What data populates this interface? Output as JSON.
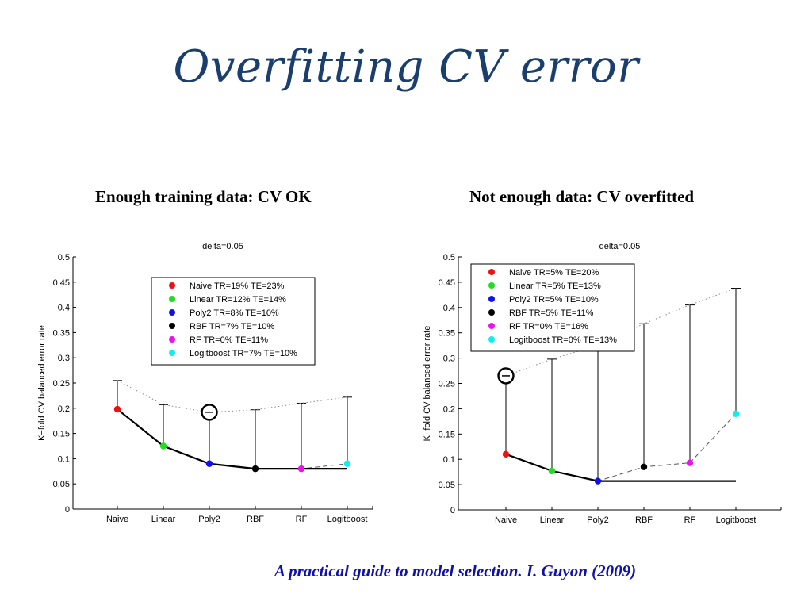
{
  "slide": {
    "title": "Overfitting CV error",
    "citation": "A practical guide to model selection. I. Guyon (2009)"
  },
  "colors": {
    "title": "#1a3f6e",
    "citation": "#1010b0",
    "Naive": "#ee1111",
    "Linear": "#22dd22",
    "Poly2": "#1111ee",
    "RBF": "#000000",
    "RF": "#ee11ee",
    "Logitboost": "#11eeee"
  },
  "chart_data": [
    {
      "type": "line",
      "caption": "Enough training data: CV OK",
      "title": "delta=0.05",
      "ylabel": "K−fold CV balanced error rate",
      "xlabel": "",
      "categories": [
        "Naive",
        "Linear",
        "Poly2",
        "RBF",
        "RF",
        "Logitboost"
      ],
      "ylim": [
        0,
        0.5
      ],
      "yticks": [
        "0",
        "0.05",
        "0.1",
        "0.15",
        "0.2",
        "0.25",
        "0.3",
        "0.35",
        "0.4",
        "0.45",
        "0.5"
      ],
      "grid": false,
      "legend_position": "top-right",
      "series": [
        {
          "name": "Naive TR=19% TE=23%",
          "value": 0.198,
          "upper": 0.255
        },
        {
          "name": "Linear TR=12% TE=14%",
          "value": 0.125,
          "upper": 0.207
        },
        {
          "name": "Poly2 TR=8% TE=10%",
          "value": 0.09,
          "upper": 0.192
        },
        {
          "name": "RBF TR=7% TE=10%",
          "value": 0.08,
          "upper": 0.197
        },
        {
          "name": "RF TR=0% TE=11%",
          "value": 0.08,
          "upper": 0.21
        },
        {
          "name": "Logitboost TR=7% TE=10%",
          "value": 0.09,
          "upper": 0.222
        }
      ],
      "running_min": [
        0.198,
        0.125,
        0.09,
        0.08,
        0.08,
        0.08
      ],
      "selected_model": "Poly2"
    },
    {
      "type": "line",
      "caption": "Not enough data: CV overfitted",
      "title": "delta=0.05",
      "ylabel": "K−fold CV balanced error rate",
      "xlabel": "",
      "categories": [
        "Naive",
        "Linear",
        "Poly2",
        "RBF",
        "RF",
        "Logitboost"
      ],
      "ylim": [
        0,
        0.5
      ],
      "yticks": [
        "0",
        "0.05",
        "0.1",
        "0.15",
        "0.2",
        "0.25",
        "0.3",
        "0.35",
        "0.4",
        "0.45",
        "0.5"
      ],
      "grid": false,
      "legend_position": "top-left",
      "series": [
        {
          "name": "Naive TR=5% TE=20%",
          "value": 0.11,
          "upper": 0.265
        },
        {
          "name": "Linear TR=5% TE=13%",
          "value": 0.077,
          "upper": 0.298
        },
        {
          "name": "Poly2 TR=5% TE=10%",
          "value": 0.057,
          "upper": 0.325
        },
        {
          "name": "RBF TR=5% TE=11%",
          "value": 0.085,
          "upper": 0.368
        },
        {
          "name": "RF TR=0% TE=16%",
          "value": 0.093,
          "upper": 0.405
        },
        {
          "name": "Logitboost TR=0% TE=13%",
          "value": 0.19,
          "upper": 0.438
        }
      ],
      "running_min": [
        0.11,
        0.077,
        0.057,
        0.057,
        0.057,
        0.057
      ],
      "selected_model": "Naive"
    }
  ]
}
